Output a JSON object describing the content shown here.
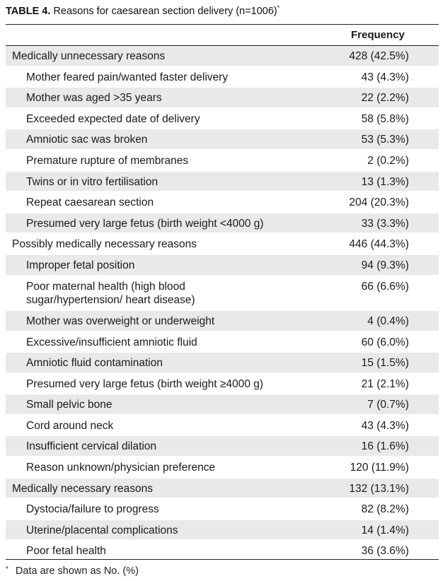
{
  "caption": {
    "label": "TABLE 4.",
    "title": "Reasons for caesarean section delivery (n=1006)",
    "marker": "*"
  },
  "header": {
    "col1": "",
    "col2": "Frequency"
  },
  "rows": [
    {
      "label": "Medically unnecessary reasons",
      "value": "428 (42.5%)",
      "level": 0
    },
    {
      "label": "Mother feared pain/wanted faster delivery",
      "value": "43 (4.3%)",
      "level": 1
    },
    {
      "label": "Mother was aged >35 years",
      "value": "22 (2.2%)",
      "level": 1
    },
    {
      "label": "Exceeded expected date of delivery",
      "value": "58 (5.8%)",
      "level": 1
    },
    {
      "label": "Amniotic sac was broken",
      "value": "53 (5.3%)",
      "level": 1
    },
    {
      "label": "Premature rupture of membranes",
      "value": "2 (0.2%)",
      "level": 1
    },
    {
      "label": "Twins or in vitro fertilisation",
      "value": "13 (1.3%)",
      "level": 1
    },
    {
      "label": "Repeat caesarean section",
      "value": "204 (20.3%)",
      "level": 1
    },
    {
      "label": "Presumed very large fetus (birth weight <4000 g)",
      "value": "33 (3.3%)",
      "level": 1
    },
    {
      "label": "Possibly medically necessary reasons",
      "value": "446 (44.3%)",
      "level": 0
    },
    {
      "label": "Improper fetal position",
      "value": "94 (9.3%)",
      "level": 1
    },
    {
      "label": "Poor maternal health (high blood sugar/hypertension/ heart disease)",
      "value": "66 (6.6%)",
      "level": 1,
      "lines": 2
    },
    {
      "label": "Mother was overweight or underweight",
      "value": "4 (0.4%)",
      "level": 1
    },
    {
      "label": "Excessive/insufficient amniotic fluid",
      "value": "60 (6.0%)",
      "level": 1
    },
    {
      "label": "Amniotic fluid contamination",
      "value": "15 (1.5%)",
      "level": 1
    },
    {
      "label": "Presumed very large fetus (birth weight ≥4000 g)",
      "value": "21 (2.1%)",
      "level": 1
    },
    {
      "label": "Small pelvic bone",
      "value": "7 (0.7%)",
      "level": 1
    },
    {
      "label": "Cord around neck",
      "value": "43 (4.3%)",
      "level": 1
    },
    {
      "label": "Insufficient cervical dilation",
      "value": "16 (1.6%)",
      "level": 1
    },
    {
      "label": "Reason unknown/physician preference",
      "value": "120 (11.9%)",
      "level": 1
    },
    {
      "label": "Medically necessary reasons",
      "value": "132 (13.1%)",
      "level": 0
    },
    {
      "label": "Dystocia/failure to progress",
      "value": "82 (8.2%)",
      "level": 1
    },
    {
      "label": "Uterine/placental complications",
      "value": "14 (1.4%)",
      "level": 1
    },
    {
      "label": "Poor fetal health",
      "value": "36 (3.6%)",
      "level": 1
    }
  ],
  "footnote": {
    "marker": "*",
    "text": "Data are shown as No. (%)"
  },
  "colors": {
    "row_shade": "#e9e9eb",
    "rule": "#222222"
  }
}
